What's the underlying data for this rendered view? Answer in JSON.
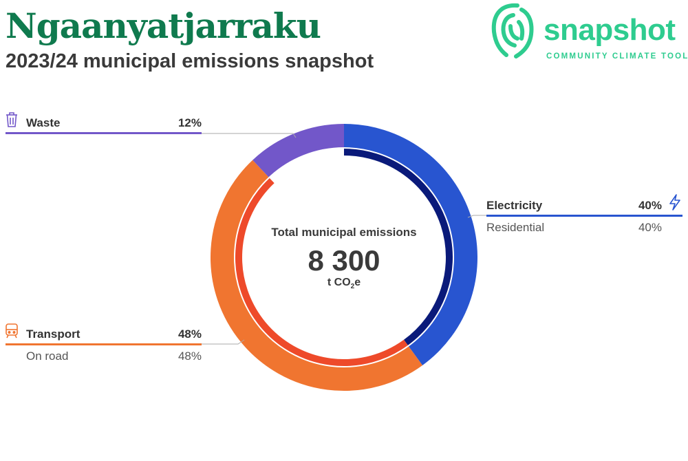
{
  "header": {
    "title": "Ngaanyatjarraku",
    "subtitle": "2023/24 municipal emissions snapshot"
  },
  "logo": {
    "word": "snapshot",
    "tagline": "COMMUNITY CLIMATE TOOL",
    "color": "#2ecc8f",
    "icon": "fingerprint-icon"
  },
  "colors": {
    "title": "#0f7a4e",
    "electricity": "#2855d0",
    "electricity_inner": "#0a1a7a",
    "transport": "#f07530",
    "transport_inner": "#ee4a2a",
    "waste": "#7257c9",
    "leader_line": "#aaaaaa"
  },
  "center": {
    "title": "Total municipal emissions",
    "value": "8 300",
    "unit_prefix": "t CO",
    "unit_sub": "2",
    "unit_suffix": "e"
  },
  "categories": {
    "waste": {
      "label": "Waste",
      "pct": "12%",
      "icon": "trash-bin-icon"
    },
    "electricity": {
      "label": "Electricity",
      "pct": "40%",
      "icon": "lightning-bolt-icon",
      "sub": {
        "label": "Residential",
        "pct": "40%"
      }
    },
    "transport": {
      "label": "Transport",
      "pct": "48%",
      "icon": "train-icon",
      "sub": {
        "label": "On road",
        "pct": "48%"
      }
    }
  },
  "chart_data": {
    "type": "pie",
    "variant": "donut",
    "title": "Total municipal emissions",
    "total": 8300,
    "unit": "t CO2e",
    "series": [
      {
        "name": "Electricity",
        "value": 40,
        "subcategories": [
          {
            "name": "Residential",
            "value": 40
          }
        ]
      },
      {
        "name": "Transport",
        "value": 48,
        "subcategories": [
          {
            "name": "On road",
            "value": 48
          }
        ]
      },
      {
        "name": "Waste",
        "value": 12,
        "subcategories": []
      }
    ]
  }
}
